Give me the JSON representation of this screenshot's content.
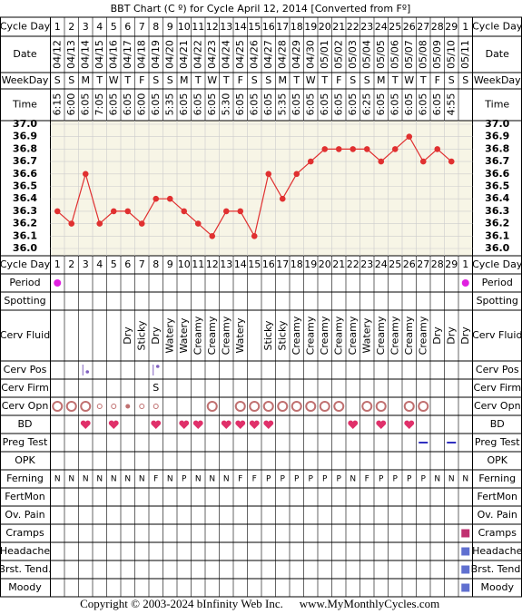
{
  "title": "BBT Chart (C º) for Cycle April 12, 2014  [Converted from Fº]",
  "labels": {
    "cycle_day": "Cycle Day",
    "date": "Date",
    "weekday": "WeekDay",
    "time": "Time",
    "period": "Period",
    "spotting": "Spotting",
    "cerv_fluid": "Cerv Fluid",
    "cerv_pos": "Cerv Pos",
    "cerv_firm": "Cerv Firm",
    "cerv_opn": "Cerv Opn",
    "bd": "BD",
    "preg_test": "Preg Test",
    "opk": "OPK",
    "ferning": "Ferning",
    "fertmon": "FertMon",
    "ov_pain": "Ov. Pain",
    "cramps": "Cramps",
    "headache": "Headache",
    "brst_tend": "Brst. Tend.",
    "moody": "Moody"
  },
  "days": {
    "cycle_day": [
      1,
      2,
      3,
      4,
      5,
      6,
      7,
      8,
      9,
      10,
      11,
      12,
      13,
      14,
      15,
      16,
      17,
      18,
      19,
      20,
      21,
      22,
      23,
      24,
      25,
      26,
      27,
      28,
      29,
      1
    ],
    "date": [
      "04/12",
      "04/13",
      "04/14",
      "04/15",
      "04/16",
      "04/17",
      "04/18",
      "04/19",
      "04/20",
      "04/21",
      "04/22",
      "04/23",
      "04/24",
      "04/25",
      "04/26",
      "04/27",
      "04/28",
      "04/29",
      "04/30",
      "05/01",
      "05/02",
      "05/03",
      "05/04",
      "05/05",
      "05/06",
      "05/07",
      "05/08",
      "05/09",
      "05/10",
      "05/11"
    ],
    "weekday": [
      "S",
      "S",
      "M",
      "T",
      "W",
      "T",
      "F",
      "S",
      "S",
      "M",
      "T",
      "W",
      "T",
      "F",
      "S",
      "S",
      "M",
      "T",
      "W",
      "T",
      "F",
      "S",
      "S",
      "M",
      "T",
      "W",
      "T",
      "F",
      "S",
      "S"
    ],
    "time": [
      "6:15",
      "6:00",
      "6:05",
      "7:05",
      "6:05",
      "6:05",
      "6:00",
      "6:05",
      "5:35",
      "6:05",
      "6:05",
      "6:05",
      "5:30",
      "6:05",
      "6:05",
      "6:05",
      "5:35",
      "6:05",
      "6:05",
      "6:05",
      "6:05",
      "6:05",
      "6:25",
      "6:05",
      "6:05",
      "6:05",
      "6:05",
      "6:05",
      "4:55",
      null
    ]
  },
  "chart_data": {
    "type": "line",
    "color": "#e03030",
    "values": [
      36.3,
      36.2,
      36.6,
      36.2,
      36.3,
      36.3,
      36.2,
      36.4,
      36.4,
      36.3,
      36.2,
      36.1,
      36.3,
      36.3,
      36.1,
      36.6,
      36.4,
      36.6,
      36.7,
      36.8,
      36.8,
      36.8,
      36.8,
      36.7,
      36.8,
      36.9,
      36.7,
      36.8,
      36.7,
      null
    ],
    "ylim": [
      36.0,
      37.0
    ],
    "yticks": [
      {
        "value": 37.0,
        "label": "37.0"
      },
      36.9,
      36.8,
      36.7,
      36.6,
      36.5,
      36.4,
      36.3,
      36.2,
      36.1,
      {
        "value": 36.0,
        "label": "36.0"
      }
    ],
    "grid": true
  },
  "cerv_fluid": [
    null,
    null,
    null,
    null,
    null,
    "Dry",
    "Sticky",
    "Dry",
    "Watery",
    "Watery",
    "Creamy",
    "Creamy",
    "Creamy",
    "Watery",
    null,
    "Sticky",
    "Sticky",
    "Creamy",
    "Creamy",
    "Creamy",
    "Creamy",
    "Creamy",
    "Watery",
    "Creamy",
    "Creamy",
    "Creamy",
    "Creamy",
    "Dry",
    "Dry",
    "Dry"
  ],
  "cerv_firm": [
    null,
    null,
    null,
    null,
    null,
    null,
    null,
    "S",
    null,
    null,
    null,
    null,
    null,
    null,
    null,
    null,
    null,
    null,
    null,
    null,
    null,
    null,
    null,
    null,
    null,
    null,
    null,
    null,
    null,
    null
  ],
  "ferning": [
    "N",
    "N",
    "N",
    "N",
    "N",
    "N",
    "N",
    "F",
    "N",
    "P",
    "N",
    "N",
    "N",
    "F",
    "F",
    "P",
    "P",
    "P",
    "P",
    "P",
    "P",
    "N",
    "F",
    "P",
    "P",
    "P",
    "P",
    "N",
    "N",
    "N"
  ],
  "copyright": "Copyright © 2003-2024 bInfinity Web Inc.",
  "site": "www.MyMonthlyCycles.com"
}
